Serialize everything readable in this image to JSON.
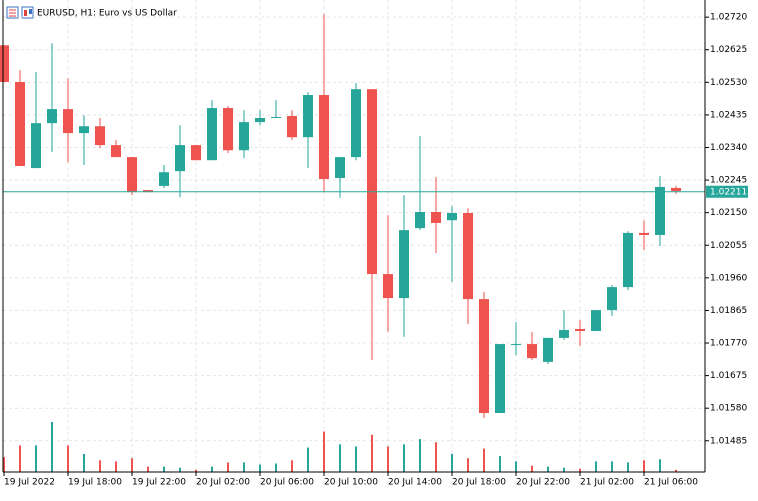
{
  "chart_data": {
    "type": "candlestick",
    "title": "EURUSD, H1:  Euro vs US Dollar",
    "categories": [
      "19 Jul 2022",
      null,
      null,
      null,
      "19 Jul 18:00",
      null,
      null,
      null,
      "19 Jul 22:00",
      null,
      null,
      null,
      "20 Jul 02:00",
      null,
      null,
      null,
      "20 Jul 06:00",
      null,
      null,
      null,
      "20 Jul 10:00",
      null,
      null,
      null,
      "20 Jul 14:00",
      null,
      null,
      null,
      "20 Jul 18:00",
      null,
      null,
      null,
      "20 Jul 22:00",
      null,
      null,
      null,
      "21 Jul 02:00",
      null,
      null,
      null,
      "21 Jul 06:00",
      null,
      null
    ],
    "ohlc": [
      [
        1.02638,
        1.02638,
        1.02531,
        1.02531
      ],
      [
        1.02531,
        1.02566,
        1.02286,
        1.02286
      ],
      [
        1.0228,
        1.0256,
        1.0228,
        1.02411
      ],
      [
        1.02411,
        1.02644,
        1.02327,
        1.02452
      ],
      [
        1.02452,
        1.02542,
        1.02297,
        1.02382
      ],
      [
        1.02382,
        1.02434,
        1.02289,
        1.02402
      ],
      [
        1.02402,
        1.02426,
        1.02338,
        1.02347
      ],
      [
        1.02347,
        1.02362,
        1.02312,
        1.02312
      ],
      [
        1.02312,
        1.02312,
        1.02201,
        1.0221
      ],
      [
        1.02216,
        1.02216,
        1.0221,
        1.0221
      ],
      [
        1.02228,
        1.02289,
        1.02222,
        1.02268
      ],
      [
        1.02271,
        1.02405,
        1.02195,
        1.02347
      ],
      [
        1.02347,
        1.02347,
        1.02303,
        1.02303
      ],
      [
        1.02303,
        1.02478,
        1.02303,
        1.02455
      ],
      [
        1.02455,
        1.02461,
        1.02324,
        1.02332
      ],
      [
        1.02332,
        1.02449,
        1.02309,
        1.02414
      ],
      [
        1.02414,
        1.02449,
        1.02405,
        1.02426
      ],
      [
        1.02426,
        1.02478,
        1.02426,
        1.02429
      ],
      [
        1.02432,
        1.02449,
        1.02362,
        1.0237
      ],
      [
        1.0237,
        1.02501,
        1.0228,
        1.02493
      ],
      [
        1.02493,
        1.02729,
        1.0221,
        1.02248
      ],
      [
        1.02251,
        1.02312,
        1.02193,
        1.02312
      ],
      [
        1.02312,
        1.02528,
        1.02303,
        1.0251
      ],
      [
        1.0251,
        1.0251,
        1.0172,
        1.01971
      ],
      [
        1.01971,
        1.02143,
        1.01802,
        1.01901
      ],
      [
        1.01901,
        1.02201,
        1.01788,
        1.02099
      ],
      [
        1.02105,
        1.02373,
        1.02099,
        1.02152
      ],
      [
        1.02152,
        1.02254,
        1.02032,
        1.0212
      ],
      [
        1.02128,
        1.02169,
        1.01948,
        1.02149
      ],
      [
        1.02149,
        1.02163,
        1.01825,
        1.01898
      ],
      [
        1.01898,
        1.01919,
        1.01551,
        1.01566
      ],
      [
        1.01566,
        1.01767,
        1.01566,
        1.01767
      ],
      [
        1.01767,
        1.01831,
        1.01735,
        1.01767
      ],
      [
        1.01767,
        1.01802,
        1.0172,
        1.01726
      ],
      [
        1.01715,
        1.01785,
        1.01709,
        1.01785
      ],
      [
        1.01785,
        1.01866,
        1.01779,
        1.01808
      ],
      [
        1.01811,
        1.01837,
        1.01761,
        1.01805
      ],
      [
        1.01805,
        1.01866,
        1.01805,
        1.01866
      ],
      [
        1.01866,
        1.01939,
        1.01849,
        1.01933
      ],
      [
        1.01933,
        1.02096,
        1.01924,
        1.02091
      ],
      [
        1.02091,
        1.02128,
        1.02041,
        1.02085
      ],
      [
        1.02085,
        1.02257,
        1.02053,
        1.02225
      ],
      [
        1.02222,
        1.02228,
        1.02204,
        1.02213
      ]
    ],
    "volumes": [
      14,
      25,
      25,
      47,
      25,
      17,
      11,
      10,
      13,
      5,
      5,
      4,
      2,
      5,
      9,
      9,
      7,
      8,
      11,
      23,
      38,
      26,
      24,
      35,
      24,
      26,
      31,
      28,
      17,
      13,
      22,
      15,
      10,
      6,
      5,
      4,
      3,
      10,
      10,
      9,
      11,
      12,
      2
    ],
    "up_color": "#26a69a",
    "down_color": "#ef5350",
    "ylim": [
      1.01394,
      1.0277
    ],
    "yticks": [
      {
        "value": 1.0272,
        "label": "1.02720"
      },
      1.02625,
      {
        "value": 1.0253,
        "label": "1.02530"
      },
      1.02435,
      {
        "value": 1.0234,
        "label": "1.02340"
      },
      1.02245,
      {
        "value": 1.0215,
        "label": "1.02150"
      },
      1.02055,
      {
        "value": 1.0196,
        "label": "1.01960"
      },
      1.01865,
      {
        "value": 1.0177,
        "label": "1.01770"
      },
      1.01675,
      {
        "value": 1.0158,
        "label": "1.01580"
      },
      1.01485
    ],
    "last_price": 1.02211,
    "grid": true
  }
}
